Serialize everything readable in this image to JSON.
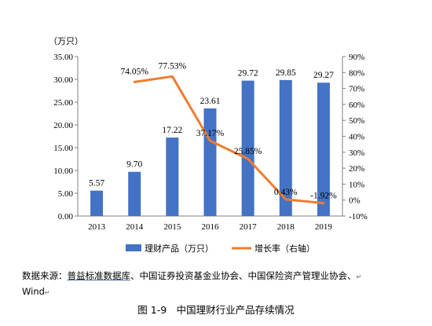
{
  "chart_data": {
    "type": "bar+line",
    "categories": [
      "2013",
      "2014",
      "2015",
      "2016",
      "2017",
      "2018",
      "2019"
    ],
    "series": [
      {
        "name": "理财产品（万只）",
        "type": "bar",
        "axis": "left",
        "color": "#4472C4",
        "values": [
          5.57,
          9.7,
          17.22,
          23.61,
          29.72,
          29.85,
          29.27
        ],
        "labels": [
          "5.57",
          "9.70",
          "17.22",
          "23.61",
          "29.72",
          "29.85",
          "29.27"
        ]
      },
      {
        "name": "增长率（右轴）",
        "type": "line",
        "axis": "right",
        "color": "#ED7D31",
        "values": [
          null,
          74.05,
          77.53,
          37.17,
          25.85,
          0.43,
          -1.92
        ],
        "labels": [
          "",
          "74.05%",
          "77.53%",
          "37.17%",
          "25.85%",
          "0.43%",
          "-1.92%"
        ]
      }
    ],
    "left_axis": {
      "unit": "（万只）",
      "ylim": [
        0,
        35
      ],
      "ticks": [
        "0.00",
        "5.00",
        "10.00",
        "15.00",
        "20.00",
        "25.00",
        "30.00",
        "35.00"
      ]
    },
    "right_axis": {
      "ylim": [
        -10,
        90
      ],
      "ticks": [
        "-10%",
        "0%",
        "10%",
        "20%",
        "30%",
        "40%",
        "50%",
        "60%",
        "70%",
        "80%",
        "90%"
      ]
    },
    "legend": {
      "position": "bottom",
      "items": [
        "理财产品（万只）",
        "增长率（右轴）"
      ]
    },
    "grid": false
  },
  "source": {
    "prefix": "数据来源：",
    "link": "普益标准数据库",
    "rest": "、中国证券投资基金业协会、中国保险资产管理业协会、",
    "line2": "Wind"
  },
  "caption": "图 1-9　中国理财行业产品存续情况"
}
